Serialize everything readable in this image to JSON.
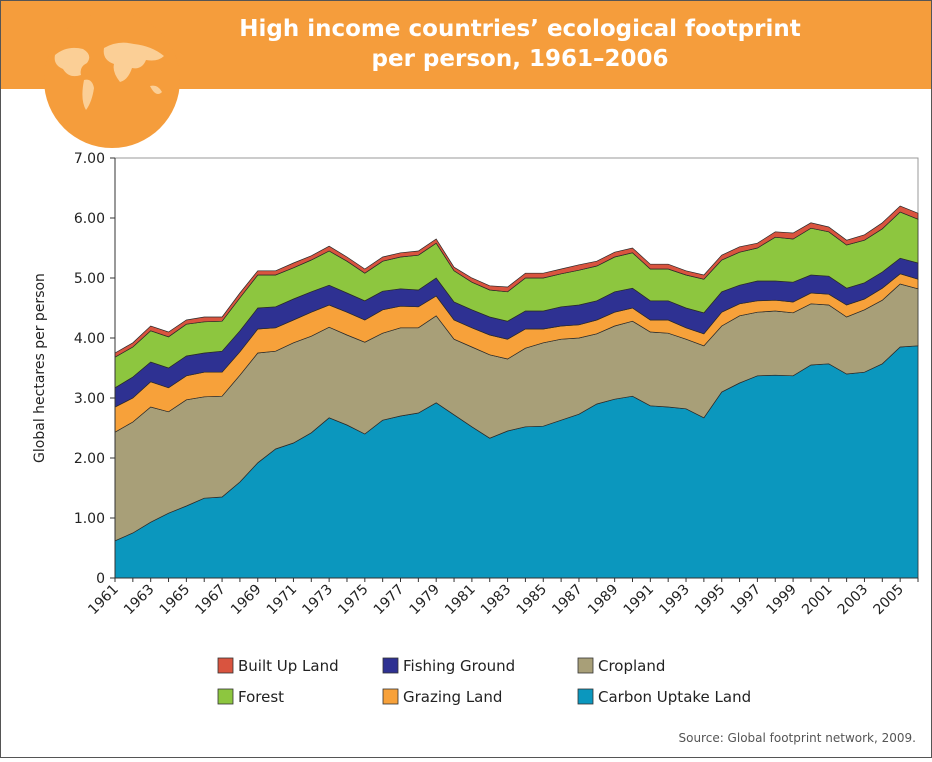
{
  "chart_data": {
    "type": "stacked_area",
    "title": [
      "High income countries’ ecological footprint",
      "per person, 1961–2006"
    ],
    "y_label": "Global hectares per person",
    "source": "Source: Global footprint network, 2009.",
    "categories": [
      "1961",
      null,
      "1963",
      null,
      "1965",
      null,
      "1967",
      null,
      "1969",
      null,
      "1971",
      null,
      "1973",
      null,
      "1975",
      null,
      "1977",
      null,
      "1979",
      null,
      "1981",
      null,
      "1983",
      null,
      "1985",
      null,
      "1987",
      null,
      "1989",
      null,
      "1991",
      null,
      "1993",
      null,
      "1995",
      null,
      "1997",
      null,
      "1999",
      null,
      "2001",
      null,
      "2003",
      null,
      "2005",
      null
    ],
    "ylim": [
      0,
      7
    ],
    "yticks": [
      0,
      {
        "value": 1,
        "label": "1.00"
      },
      {
        "value": 2,
        "label": "2.00"
      },
      {
        "value": 3,
        "label": "3.00"
      },
      {
        "value": 4,
        "label": "4.00"
      },
      {
        "value": 5,
        "label": "5.00"
      },
      {
        "value": 6,
        "label": "6.00"
      },
      {
        "value": 7,
        "label": "7.00"
      }
    ],
    "series": [
      {
        "name": "Built Up Land",
        "color": "#d9543f",
        "values": [
          0.07,
          0.07,
          0.08,
          0.08,
          0.07,
          0.08,
          0.07,
          0.08,
          0.07,
          0.07,
          0.08,
          0.07,
          0.08,
          0.07,
          0.07,
          0.07,
          0.07,
          0.07,
          0.07,
          0.06,
          0.07,
          0.07,
          0.08,
          0.08,
          0.08,
          0.08,
          0.09,
          0.08,
          0.08,
          0.08,
          0.08,
          0.08,
          0.07,
          0.07,
          0.08,
          0.09,
          0.08,
          0.09,
          0.1,
          0.09,
          0.08,
          0.08,
          0.09,
          0.1,
          0.1,
          0.1
        ]
      },
      {
        "name": "Forest",
        "color": "#8dc63f",
        "values": [
          0.51,
          0.5,
          0.52,
          0.52,
          0.53,
          0.52,
          0.5,
          0.55,
          0.55,
          0.53,
          0.52,
          0.53,
          0.57,
          0.53,
          0.46,
          0.5,
          0.53,
          0.58,
          0.58,
          0.52,
          0.46,
          0.45,
          0.49,
          0.55,
          0.55,
          0.55,
          0.58,
          0.58,
          0.58,
          0.59,
          0.53,
          0.53,
          0.55,
          0.56,
          0.53,
          0.55,
          0.55,
          0.73,
          0.72,
          0.78,
          0.74,
          0.72,
          0.71,
          0.72,
          0.77,
          0.73
        ]
      },
      {
        "name": "Fishing Ground",
        "color": "#2e3192",
        "values": [
          0.32,
          0.35,
          0.33,
          0.33,
          0.33,
          0.32,
          0.35,
          0.35,
          0.35,
          0.35,
          0.35,
          0.34,
          0.33,
          0.32,
          0.32,
          0.31,
          0.29,
          0.28,
          0.3,
          0.3,
          0.3,
          0.3,
          0.3,
          0.3,
          0.3,
          0.32,
          0.33,
          0.32,
          0.34,
          0.33,
          0.32,
          0.32,
          0.33,
          0.35,
          0.34,
          0.31,
          0.33,
          0.32,
          0.33,
          0.3,
          0.3,
          0.28,
          0.27,
          0.27,
          0.26,
          0.27
        ]
      },
      {
        "name": "Grazing Land",
        "color": "#f7a13a",
        "values": [
          0.42,
          0.4,
          0.42,
          0.4,
          0.4,
          0.41,
          0.4,
          0.39,
          0.4,
          0.39,
          0.38,
          0.4,
          0.37,
          0.38,
          0.37,
          0.39,
          0.36,
          0.35,
          0.33,
          0.32,
          0.32,
          0.33,
          0.33,
          0.32,
          0.23,
          0.22,
          0.22,
          0.23,
          0.23,
          0.22,
          0.2,
          0.22,
          0.19,
          0.2,
          0.23,
          0.2,
          0.19,
          0.18,
          0.18,
          0.18,
          0.18,
          0.2,
          0.18,
          0.2,
          0.17,
          0.16
        ]
      },
      {
        "name": "Cropland",
        "color": "#a89f78",
        "values": [
          1.81,
          1.85,
          1.92,
          1.69,
          1.77,
          1.69,
          1.68,
          1.78,
          1.83,
          1.63,
          1.67,
          1.61,
          1.51,
          1.5,
          1.53,
          1.45,
          1.47,
          1.42,
          1.45,
          1.26,
          1.33,
          1.39,
          1.2,
          1.31,
          1.39,
          1.35,
          1.27,
          1.17,
          1.22,
          1.25,
          1.23,
          1.23,
          1.16,
          1.2,
          1.1,
          1.12,
          1.06,
          1.07,
          1.05,
          1.02,
          0.98,
          0.95,
          1.04,
          1.06,
          1.05,
          0.95
        ]
      },
      {
        "name": "Carbon Uptake Land",
        "color": "#0b97be",
        "values": [
          0.62,
          0.75,
          0.93,
          1.08,
          1.2,
          1.33,
          1.35,
          1.6,
          1.92,
          2.15,
          2.25,
          2.42,
          2.67,
          2.55,
          2.4,
          2.63,
          2.7,
          2.75,
          2.92,
          2.72,
          2.52,
          2.33,
          2.45,
          2.52,
          2.53,
          2.63,
          2.73,
          2.9,
          2.98,
          3.03,
          2.87,
          2.85,
          2.82,
          2.67,
          3.1,
          3.25,
          3.37,
          3.38,
          3.37,
          3.55,
          3.57,
          3.4,
          3.43,
          3.57,
          3.85,
          3.87
        ]
      }
    ]
  }
}
